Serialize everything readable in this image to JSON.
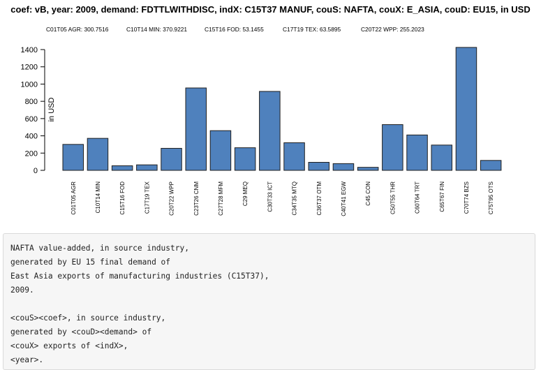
{
  "chart_data": {
    "type": "bar",
    "title": "coef: vB, year: 2009, demand: FDTTLWITHDISC, indX: C15T37 MANUF, couS: NAFTA, couX: E_ASIA, couD: EU15, in USD",
    "ylabel": "in USD",
    "xlabel": "",
    "ylim": [
      0,
      1400
    ],
    "yticks": [
      0,
      200,
      400,
      600,
      800,
      1000,
      1200,
      1400
    ],
    "grid": false,
    "bar_color": "#4f81bd",
    "annotations": [
      "C01T05 AGR: 300.7516",
      "C10T14 MIN: 370.9221",
      "C15T16 FOD: 53.1455",
      "C17T19 TEX: 63.5895",
      "C20T22 WPP: 255.2023"
    ],
    "categories": [
      "C01T05 AGR",
      "C10T14 MIN",
      "C15T16 FOD",
      "C17T19 TEX",
      "C20T22 WPP",
      "C23T26 CNM",
      "C27T28 MFM",
      "C29 MEQ",
      "C30T33 ICT",
      "C34T35 MTQ",
      "C36T37 OTM",
      "C40T41 EGW",
      "C45 CON",
      "C50T55 THR",
      "C60T64 TRT",
      "C65T67 FIN",
      "C70T74 BZS",
      "C75T95 OTS"
    ],
    "values": [
      300.7516,
      370.9221,
      53.1455,
      63.5895,
      255.2023,
      955,
      460,
      262,
      915,
      320,
      93,
      78,
      35,
      530,
      410,
      293,
      1425,
      115
    ]
  },
  "text_block": {
    "lines": [
      "NAFTA value-added, in source industry,",
      "generated by EU 15 final demand of",
      "East Asia exports of manufacturing industries (C15T37),",
      "2009.",
      "",
      "<couS><coef>, in source industry,",
      "generated by <couD><demand> of",
      "<couX> exports of <indX>,",
      "<year>."
    ]
  }
}
